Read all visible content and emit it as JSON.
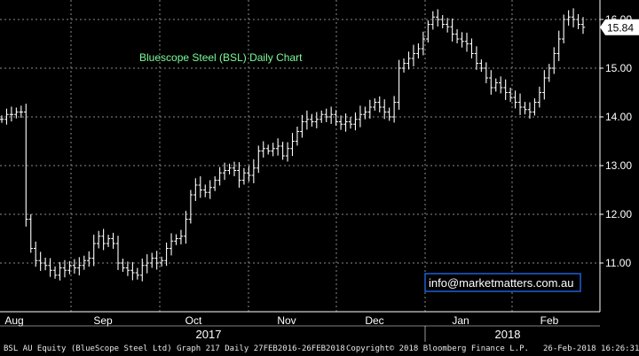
{
  "chart_data": {
    "type": "ohlc",
    "title": "Bluescope Steel (BSL) Daily Chart",
    "annotation": "info@marketmatters.com.au",
    "last_price_label": "15.84",
    "ylim": [
      10.0,
      16.4
    ],
    "yticks": [
      11.0,
      12.0,
      13.0,
      14.0,
      15.0,
      16.0
    ],
    "ytick_labels": [
      "11.00",
      "12.00",
      "13.00",
      "14.00",
      "15.00",
      "16.00"
    ],
    "months": [
      "Aug",
      "Sep",
      "Oct",
      "Nov",
      "Dec",
      "Jan",
      "Feb"
    ],
    "years": [
      "2017",
      "2018"
    ],
    "grid": true,
    "closes": [
      13.95,
      14.05,
      14.05,
      14.1,
      14.1,
      11.9,
      11.3,
      11.05,
      11.0,
      10.95,
      10.85,
      10.75,
      10.9,
      10.85,
      10.95,
      10.9,
      10.95,
      11.05,
      11.1,
      11.4,
      11.55,
      11.4,
      11.5,
      11.4,
      11.0,
      10.9,
      10.85,
      10.8,
      10.75,
      10.95,
      11.0,
      11.1,
      11.0,
      11.05,
      11.3,
      11.45,
      11.5,
      11.55,
      11.9,
      12.4,
      12.6,
      12.5,
      12.45,
      12.55,
      12.7,
      12.85,
      12.9,
      12.95,
      12.9,
      12.7,
      12.85,
      12.8,
      12.95,
      13.3,
      13.35,
      13.3,
      13.35,
      13.4,
      13.2,
      13.35,
      13.5,
      13.7,
      13.9,
      13.95,
      13.9,
      13.95,
      14.05,
      14.0,
      14.05,
      13.9,
      13.85,
      13.9,
      13.85,
      13.95,
      14.05,
      14.1,
      14.2,
      14.3,
      14.2,
      14.1,
      14.0,
      14.3,
      15.0,
      15.1,
      15.2,
      15.3,
      15.4,
      15.6,
      15.9,
      16.05,
      16.0,
      15.9,
      15.85,
      15.7,
      15.6,
      15.55,
      15.5,
      15.3,
      15.1,
      15.0,
      14.8,
      14.6,
      14.7,
      14.6,
      14.5,
      14.4,
      14.3,
      14.2,
      14.15,
      14.1,
      14.3,
      14.5,
      14.8,
      15.0,
      15.3,
      15.6,
      16.0,
      16.05,
      16.0,
      15.9,
      15.84
    ],
    "x_dates_note": "",
    "trading_days": 121
  },
  "footer": {
    "left": "BSL AU Equity (BlueScope Steel Ltd) Graph 217  Daily 27FEB2016-26FEB2018",
    "center": "Copyright© 2018 Bloomberg Finance L.P.",
    "right": "26-Feb-2018 16:26:31"
  },
  "colors": {
    "background": "#000000",
    "bars": "#ffffff",
    "grid": "#8a8a8a",
    "title": "#7CFC9A",
    "annotation_text": "#ffffff",
    "annotation_box": "#1c5fd6",
    "price_box": "#ffffff"
  }
}
